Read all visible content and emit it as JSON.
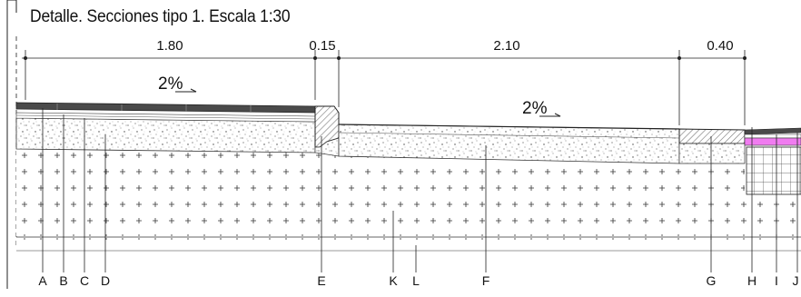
{
  "title": "Detalle. Secciones tipo 1. Escala 1:30",
  "dimensions": [
    "1.80",
    "0.15",
    "2.10",
    "0.40"
  ],
  "slopes": [
    "2%",
    "2%"
  ],
  "callouts": [
    "A",
    "B",
    "C",
    "D",
    "E",
    "K",
    "L",
    "F",
    "G",
    "H",
    "I",
    "J"
  ],
  "colors": {
    "line": "#1a1a1a",
    "paving": "#4a4a4a",
    "curb_hatch": "#888888",
    "magenta_layer": "#f07cf0",
    "background": "#ffffff"
  }
}
